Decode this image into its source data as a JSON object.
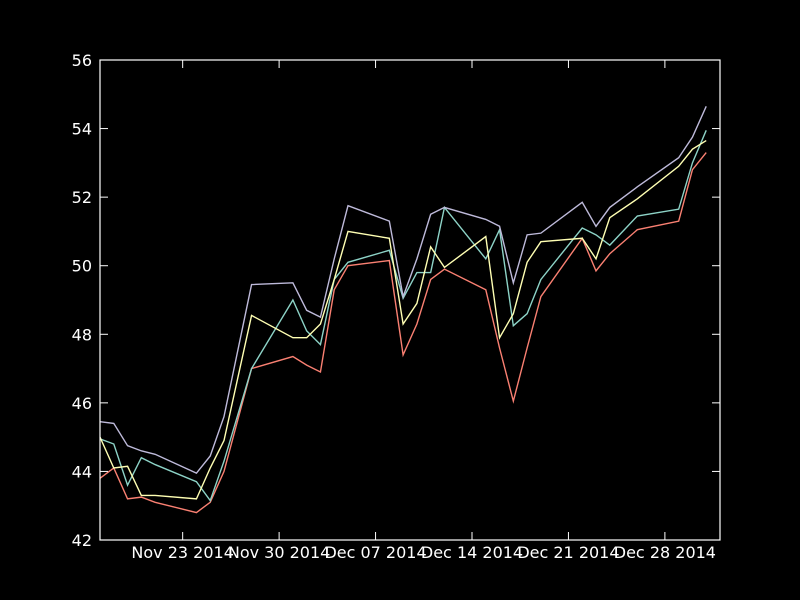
{
  "chart_data": {
    "type": "line",
    "title": "",
    "xlabel": "",
    "ylabel": "",
    "x_axis": "date",
    "xlim": [
      "2014-11-17",
      "2015-01-01"
    ],
    "ylim": [
      42,
      56
    ],
    "grid": false,
    "legend": "none",
    "background": "#000000",
    "foreground": "#ffffff",
    "x_ticks": [
      {
        "date": "2014-11-23",
        "label": "Nov 23 2014"
      },
      {
        "date": "2014-11-30",
        "label": "Nov 30 2014"
      },
      {
        "date": "2014-12-07",
        "label": "Dec 07 2014"
      },
      {
        "date": "2014-12-14",
        "label": "Dec 14 2014"
      },
      {
        "date": "2014-12-21",
        "label": "Dec 21 2014"
      },
      {
        "date": "2014-12-28",
        "label": "Dec 28 2014"
      }
    ],
    "y_ticks": [
      {
        "value": 42,
        "label": "42"
      },
      {
        "value": 44,
        "label": "44"
      },
      {
        "value": 46,
        "label": "46"
      },
      {
        "value": 48,
        "label": "48"
      },
      {
        "value": 50,
        "label": "50"
      },
      {
        "value": 52,
        "label": "52"
      },
      {
        "value": 54,
        "label": "54"
      },
      {
        "value": 56,
        "label": "56"
      }
    ],
    "x": [
      "2014-11-17",
      "2014-11-18",
      "2014-11-19",
      "2014-11-20",
      "2014-11-21",
      "2014-11-24",
      "2014-11-25",
      "2014-11-26",
      "2014-11-28",
      "2014-12-01",
      "2014-12-02",
      "2014-12-03",
      "2014-12-04",
      "2014-12-05",
      "2014-12-08",
      "2014-12-09",
      "2014-12-10",
      "2014-12-11",
      "2014-12-12",
      "2014-12-15",
      "2014-12-16",
      "2014-12-17",
      "2014-12-18",
      "2014-12-19",
      "2014-12-22",
      "2014-12-23",
      "2014-12-24",
      "2014-12-26",
      "2014-12-29",
      "2014-12-30",
      "2014-12-31"
    ],
    "series": [
      {
        "color": "#fa8072",
        "values": [
          43.8,
          44.1,
          43.2,
          43.25,
          43.1,
          42.8,
          43.1,
          44.0,
          47.0,
          47.35,
          47.1,
          46.9,
          49.3,
          50.0,
          50.15,
          47.4,
          48.3,
          49.6,
          49.9,
          49.3,
          47.6,
          46.05,
          47.6,
          49.1,
          50.8,
          49.85,
          50.35,
          51.05,
          51.3,
          52.8,
          53.3
        ]
      },
      {
        "color": "#8dd3c7",
        "values": [
          44.95,
          44.8,
          43.6,
          44.4,
          44.2,
          43.7,
          43.15,
          44.3,
          47.0,
          49.0,
          48.1,
          47.7,
          49.6,
          50.1,
          50.45,
          49.05,
          49.8,
          49.8,
          51.7,
          50.2,
          51.05,
          48.25,
          48.6,
          49.6,
          51.1,
          50.9,
          50.6,
          51.45,
          51.65,
          53.0,
          53.95
        ]
      },
      {
        "color": "#ffffb3",
        "values": [
          45.0,
          44.1,
          44.15,
          43.3,
          43.3,
          43.2,
          44.1,
          44.9,
          48.55,
          47.9,
          47.9,
          48.3,
          49.6,
          51.0,
          50.8,
          48.3,
          48.9,
          50.55,
          49.95,
          50.85,
          47.9,
          48.6,
          50.1,
          50.7,
          50.8,
          50.2,
          51.4,
          51.95,
          52.9,
          53.4,
          53.65
        ]
      },
      {
        "color": "#bebada",
        "values": [
          45.45,
          45.4,
          44.75,
          44.6,
          44.5,
          43.95,
          44.45,
          45.6,
          49.45,
          49.5,
          48.7,
          48.5,
          50.2,
          51.75,
          51.3,
          49.1,
          50.2,
          51.5,
          51.7,
          51.35,
          51.15,
          49.5,
          50.9,
          50.95,
          51.85,
          51.15,
          51.7,
          52.3,
          53.15,
          53.75,
          54.65
        ]
      }
    ]
  }
}
